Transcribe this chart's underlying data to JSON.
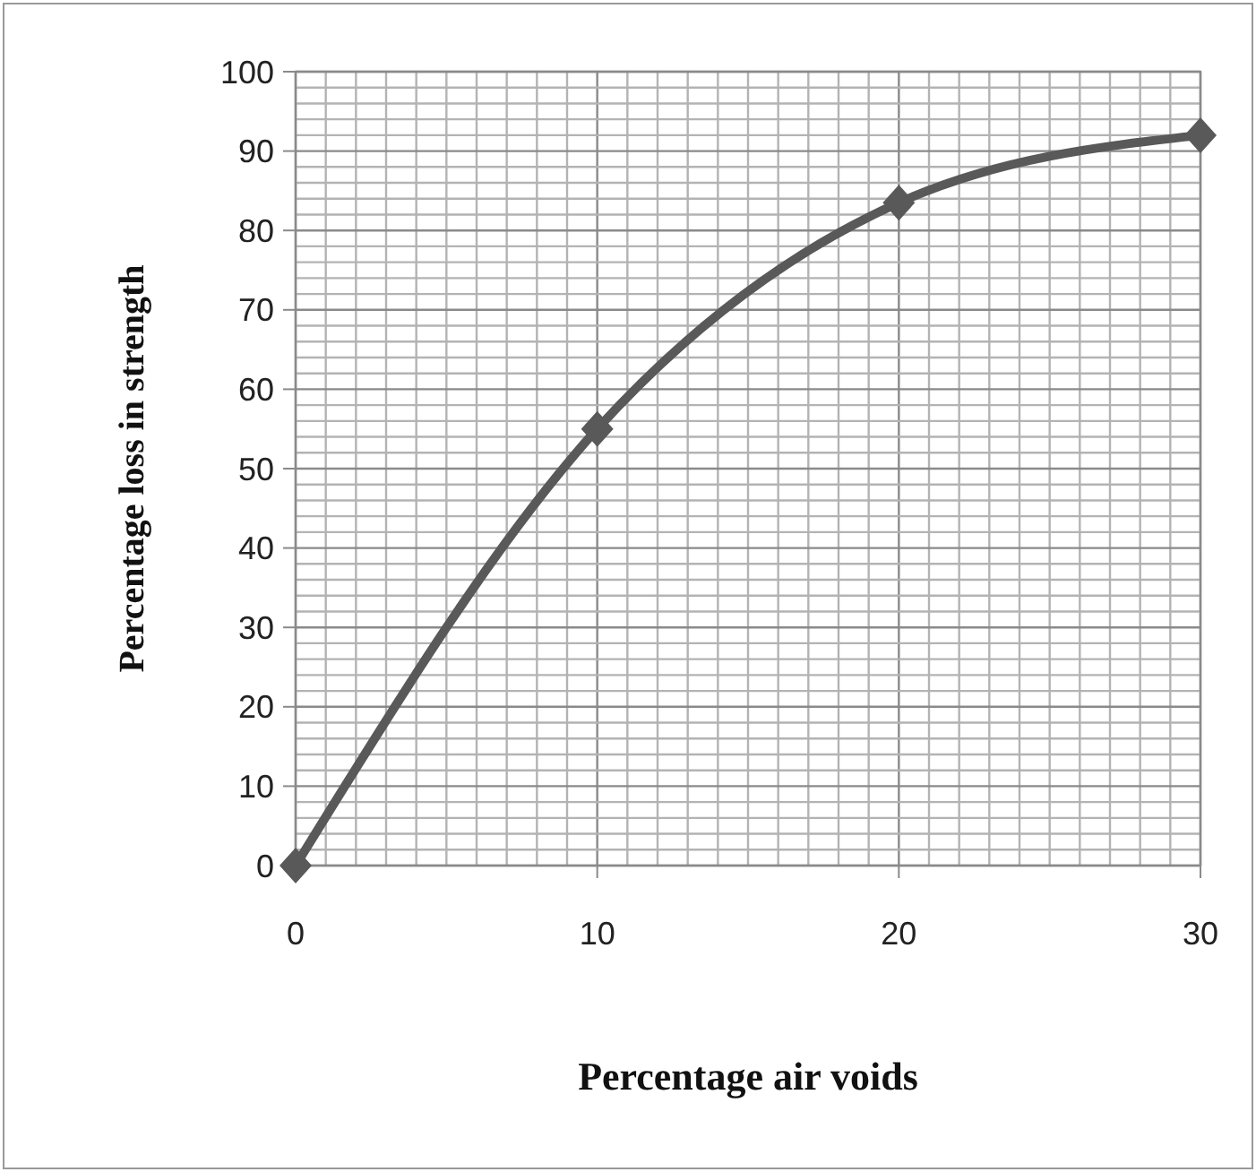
{
  "chart_data": {
    "type": "line",
    "xlabel": "Percentage air voids",
    "ylabel": "Percentage loss in strength",
    "x": [
      0,
      10,
      20,
      30
    ],
    "series": [
      {
        "color": "#595959",
        "values": [
          0,
          55,
          83.5,
          92
        ]
      }
    ],
    "xlim": [
      0,
      30
    ],
    "xticks": [
      0,
      10,
      20,
      30
    ],
    "ylim": [
      0,
      100
    ],
    "yticks": [
      0,
      10,
      20,
      30,
      40,
      50,
      60,
      70,
      80,
      90,
      100
    ],
    "grid": true,
    "marker": "diamond",
    "line_style": "solid"
  }
}
